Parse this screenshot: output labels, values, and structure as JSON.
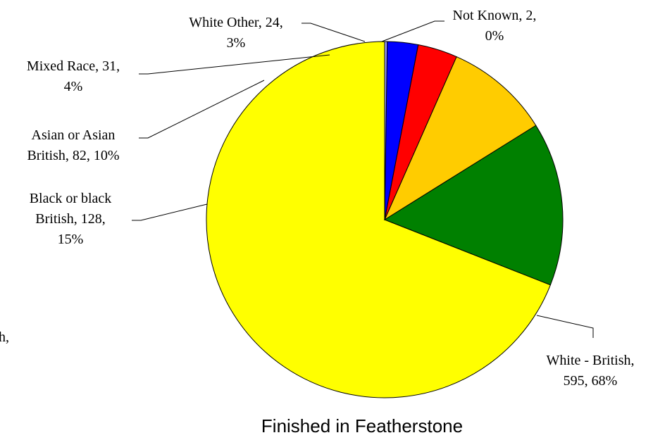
{
  "chart_data": {
    "type": "pie",
    "title": "Finished in Featherstone",
    "slices": [
      {
        "name": "White - British",
        "value": 595,
        "percent": "68%",
        "color": "#FFFF00",
        "label_lines": [
          "White - British,",
          "595, 68%"
        ]
      },
      {
        "name": "Black or black British",
        "value": 128,
        "percent": "15%",
        "color": "#008000",
        "label_lines": [
          "Black or black",
          "British, 128,",
          "15%"
        ]
      },
      {
        "name": "Asian or Asian British",
        "value": 82,
        "percent": "10%",
        "color": "#FFCC00",
        "label_lines": [
          "Asian or Asian",
          "British, 82, 10%"
        ]
      },
      {
        "name": "Mixed Race",
        "value": 31,
        "percent": "4%",
        "color": "#FF0000",
        "label_lines": [
          "Mixed Race, 31,",
          "4%"
        ]
      },
      {
        "name": "White Other",
        "value": 24,
        "percent": "3%",
        "color": "#0000FF",
        "label_lines": [
          "White Other, 24,",
          "3%"
        ]
      },
      {
        "name": "Not Known",
        "value": 2,
        "percent": "0%",
        "color": "#9999FF",
        "label_lines": [
          "Not Known, 2,",
          "0%"
        ]
      }
    ],
    "clipped_text_left": "h,"
  }
}
